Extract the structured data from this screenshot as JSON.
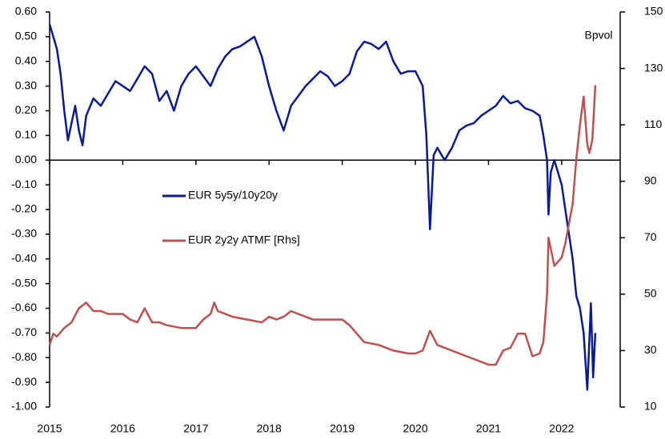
{
  "chart_data": {
    "type": "line",
    "annotation": "Bpvol",
    "xlim": [
      2015,
      2022.8
    ],
    "xticks": [
      2015,
      2016,
      2017,
      2018,
      2019,
      2020,
      2021,
      2022
    ],
    "ylim": [
      -1.0,
      0.6
    ],
    "yticks": [
      {
        "value": 0.6,
        "label": "0.60"
      },
      {
        "value": 0.5,
        "label": "0.50"
      },
      {
        "value": 0.4,
        "label": "0.40"
      },
      {
        "value": 0.3,
        "label": "0.30"
      },
      {
        "value": 0.2,
        "label": "0.20"
      },
      {
        "value": 0.1,
        "label": "0.10"
      },
      {
        "value": 0,
        "label": "0.00"
      },
      {
        "value": -0.1,
        "label": "-0.10"
      },
      {
        "value": -0.2,
        "label": "-0.20"
      },
      {
        "value": -0.3,
        "label": "-0.30"
      },
      {
        "value": -0.4,
        "label": "-0.40"
      },
      {
        "value": -0.5,
        "label": "-0.50"
      },
      {
        "value": -0.6,
        "label": "-0.60"
      },
      {
        "value": -0.7,
        "label": "-0.70"
      },
      {
        "value": -0.8,
        "label": "-0.80"
      },
      {
        "value": -0.9,
        "label": "-0.90"
      },
      {
        "value": -1.0,
        "label": "-1.00"
      }
    ],
    "y2lim": [
      10,
      150
    ],
    "y2ticks": [
      10,
      30,
      50,
      70,
      90,
      110,
      130,
      150
    ],
    "grid": false,
    "series": [
      {
        "name": "EUR 5y5y/10y20y",
        "color": "#0a1a96",
        "x": [
          2015.0,
          2015.05,
          2015.1,
          2015.15,
          2015.2,
          2015.25,
          2015.3,
          2015.35,
          2015.4,
          2015.45,
          2015.5,
          2015.6,
          2015.7,
          2015.8,
          2015.9,
          2016.0,
          2016.1,
          2016.2,
          2016.3,
          2016.4,
          2016.5,
          2016.6,
          2016.7,
          2016.8,
          2016.9,
          2017.0,
          2017.1,
          2017.2,
          2017.3,
          2017.4,
          2017.5,
          2017.6,
          2017.7,
          2017.8,
          2017.9,
          2018.0,
          2018.1,
          2018.2,
          2018.3,
          2018.4,
          2018.5,
          2018.6,
          2018.7,
          2018.8,
          2018.9,
          2019.0,
          2019.1,
          2019.2,
          2019.3,
          2019.4,
          2019.5,
          2019.6,
          2019.7,
          2019.8,
          2019.9,
          2020.0,
          2020.1,
          2020.15,
          2020.2,
          2020.25,
          2020.3,
          2020.4,
          2020.5,
          2020.6,
          2020.7,
          2020.8,
          2020.9,
          2021.0,
          2021.1,
          2021.2,
          2021.3,
          2021.4,
          2021.5,
          2021.6,
          2021.7,
          2021.75,
          2021.8,
          2021.82,
          2021.85,
          2021.9,
          2021.95,
          2022.0,
          2022.05,
          2022.1,
          2022.15,
          2022.2,
          2022.25,
          2022.3,
          2022.35,
          2022.4,
          2022.43,
          2022.46
        ],
        "values": [
          0.55,
          0.5,
          0.45,
          0.35,
          0.2,
          0.08,
          0.15,
          0.22,
          0.12,
          0.06,
          0.18,
          0.25,
          0.22,
          0.27,
          0.32,
          0.3,
          0.28,
          0.33,
          0.38,
          0.35,
          0.24,
          0.28,
          0.2,
          0.3,
          0.35,
          0.38,
          0.34,
          0.3,
          0.37,
          0.42,
          0.45,
          0.46,
          0.48,
          0.5,
          0.42,
          0.3,
          0.2,
          0.12,
          0.22,
          0.26,
          0.3,
          0.33,
          0.36,
          0.34,
          0.3,
          0.32,
          0.35,
          0.44,
          0.48,
          0.47,
          0.45,
          0.48,
          0.4,
          0.35,
          0.36,
          0.36,
          0.3,
          0.1,
          -0.28,
          0.02,
          0.05,
          0.0,
          0.05,
          0.12,
          0.14,
          0.15,
          0.18,
          0.2,
          0.22,
          0.26,
          0.23,
          0.24,
          0.21,
          0.2,
          0.18,
          0.1,
          0.0,
          -0.22,
          -0.05,
          0.0,
          -0.05,
          -0.1,
          -0.2,
          -0.3,
          -0.4,
          -0.55,
          -0.6,
          -0.7,
          -0.93,
          -0.58,
          -0.88,
          -0.7
        ]
      },
      {
        "name": "EUR 2y2y ATMF [Rhs]",
        "color": "#c0504d",
        "axis": "y2",
        "x": [
          2015.0,
          2015.05,
          2015.1,
          2015.2,
          2015.3,
          2015.4,
          2015.5,
          2015.6,
          2015.7,
          2015.8,
          2016.0,
          2016.1,
          2016.2,
          2016.3,
          2016.4,
          2016.5,
          2016.6,
          2016.8,
          2017.0,
          2017.1,
          2017.2,
          2017.25,
          2017.3,
          2017.4,
          2017.5,
          2017.7,
          2017.9,
          2018.0,
          2018.1,
          2018.2,
          2018.3,
          2018.4,
          2018.6,
          2018.8,
          2019.0,
          2019.1,
          2019.2,
          2019.3,
          2019.5,
          2019.7,
          2019.9,
          2020.0,
          2020.1,
          2020.2,
          2020.3,
          2020.5,
          2020.7,
          2020.8,
          2020.9,
          2021.0,
          2021.1,
          2021.2,
          2021.3,
          2021.4,
          2021.5,
          2021.6,
          2021.7,
          2021.75,
          2021.8,
          2021.82,
          2021.9,
          2022.0,
          2022.05,
          2022.1,
          2022.15,
          2022.2,
          2022.25,
          2022.3,
          2022.35,
          2022.38,
          2022.42,
          2022.46
        ],
        "values": [
          32,
          36,
          35,
          38,
          40,
          45,
          47,
          44,
          44,
          43,
          43,
          41,
          40,
          45,
          40,
          40,
          39,
          38,
          38,
          41,
          43,
          47,
          44,
          43,
          42,
          41,
          40,
          42,
          41,
          42,
          44,
          43,
          41,
          41,
          41,
          39,
          36,
          33,
          32,
          30,
          29,
          29,
          30,
          37,
          32,
          30,
          28,
          27,
          26,
          25,
          25,
          30,
          31,
          36,
          36,
          28,
          29,
          33,
          50,
          70,
          60,
          63,
          68,
          75,
          82,
          98,
          110,
          120,
          103,
          100,
          105,
          124
        ]
      }
    ]
  }
}
